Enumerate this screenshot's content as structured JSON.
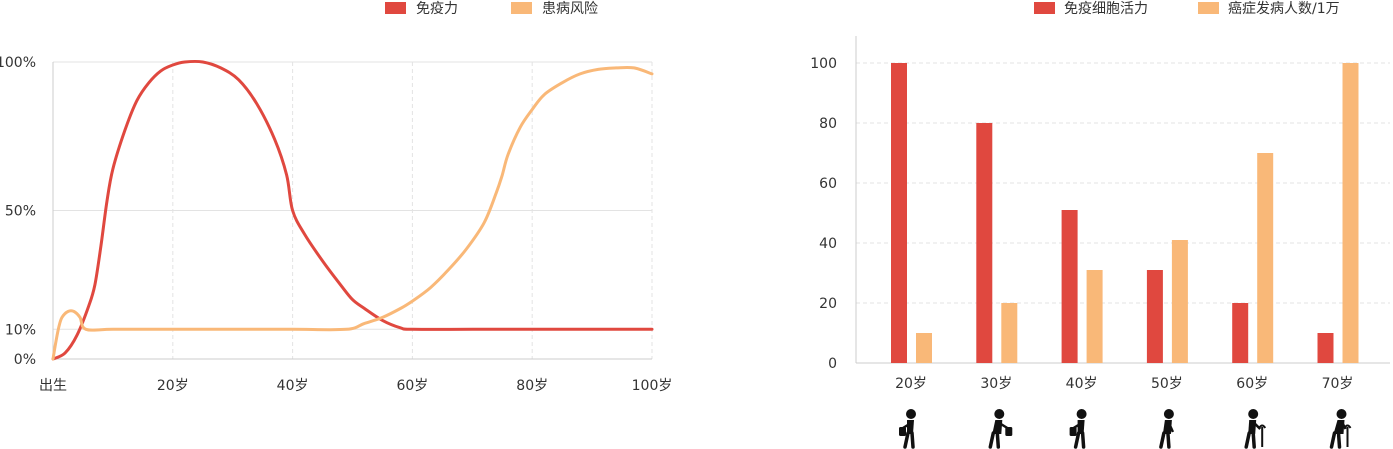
{
  "colors": {
    "red": "#e0483f",
    "orange": "#f9b878",
    "axis": "#cccccc",
    "grid": "#e3e3e3",
    "text": "#333333"
  },
  "chart_data": [
    {
      "type": "line",
      "legend_position": "top-center",
      "grid": "vertical-dashed",
      "x_ticks": [
        {
          "value": 0,
          "label": "出生"
        },
        {
          "value": 20,
          "label": "20岁"
        },
        {
          "value": 40,
          "label": "40岁"
        },
        {
          "value": 60,
          "label": "60岁"
        },
        {
          "value": 80,
          "label": "80岁"
        },
        {
          "value": 100,
          "label": "100岁"
        }
      ],
      "y_ticks": [
        {
          "value": 0,
          "label": "0%"
        },
        {
          "value": 10,
          "label": "10%"
        },
        {
          "value": 50,
          "label": "50%"
        },
        {
          "value": 100,
          "label": "100%"
        }
      ],
      "xlim": [
        0,
        100
      ],
      "ylim": [
        0,
        100
      ],
      "series": [
        {
          "name": "免疫力",
          "color": "#e0483f",
          "points": [
            [
              0,
              0
            ],
            [
              2,
              2
            ],
            [
              4,
              8
            ],
            [
              6,
              18
            ],
            [
              7,
              25
            ],
            [
              8,
              38
            ],
            [
              9,
              53
            ],
            [
              10,
              64
            ],
            [
              12,
              77
            ],
            [
              14,
              87
            ],
            [
              16,
              93
            ],
            [
              18,
              97
            ],
            [
              20,
              99
            ],
            [
              22,
              100
            ],
            [
              25,
              100
            ],
            [
              28,
              98
            ],
            [
              31,
              94
            ],
            [
              34,
              86
            ],
            [
              37,
              74
            ],
            [
              39,
              62
            ],
            [
              40,
              50
            ],
            [
              42,
              42
            ],
            [
              45,
              33
            ],
            [
              48,
              25
            ],
            [
              50,
              20
            ],
            [
              52,
              17
            ],
            [
              55,
              13
            ],
            [
              58,
              10.5
            ],
            [
              60,
              10
            ],
            [
              70,
              10
            ],
            [
              80,
              10
            ],
            [
              90,
              10
            ],
            [
              100,
              10
            ]
          ]
        },
        {
          "name": "患病风险",
          "color": "#f9b878",
          "points": [
            [
              0,
              0
            ],
            [
              0.5,
              6
            ],
            [
              1,
              11
            ],
            [
              1.5,
              14
            ],
            [
              2.5,
              16
            ],
            [
              3.5,
              16
            ],
            [
              4.5,
              14
            ],
            [
              5.5,
              10
            ],
            [
              10,
              10
            ],
            [
              20,
              10
            ],
            [
              30,
              10
            ],
            [
              40,
              10
            ],
            [
              49,
              10
            ],
            [
              52,
              12
            ],
            [
              55,
              14
            ],
            [
              58,
              17
            ],
            [
              60,
              19.5
            ],
            [
              63,
              24
            ],
            [
              66,
              30
            ],
            [
              69,
              37
            ],
            [
              72,
              46
            ],
            [
              74,
              56
            ],
            [
              75,
              62
            ],
            [
              76,
              69
            ],
            [
              78,
              78
            ],
            [
              80,
              84
            ],
            [
              82,
              89
            ],
            [
              85,
              93
            ],
            [
              88,
              96
            ],
            [
              91,
              97.5
            ],
            [
              94,
              98
            ],
            [
              97,
              98
            ],
            [
              100,
              96
            ]
          ]
        }
      ]
    },
    {
      "type": "bar",
      "legend_position": "top-center",
      "grid": "horizontal-dashed",
      "categories": [
        "20岁",
        "30岁",
        "40岁",
        "50岁",
        "60岁",
        "70岁"
      ],
      "ylim": [
        0,
        100
      ],
      "y_ticks": [
        0,
        20,
        40,
        60,
        80,
        100
      ],
      "series": [
        {
          "name": "免疫细胞活力",
          "color": "#e0483f",
          "values": [
            100,
            80,
            51,
            31,
            20,
            10
          ]
        },
        {
          "name": "癌症发病人数/1万",
          "color": "#f9b878",
          "values": [
            10,
            20,
            31,
            41,
            70,
            100
          ]
        }
      ],
      "figures": [
        "person-walking-bag-icon",
        "person-running-bag-icon",
        "person-standing-bag-icon",
        "person-bent-icon",
        "elderly-person-cane-icon",
        "elderly-person-cane-bent-icon"
      ]
    }
  ]
}
